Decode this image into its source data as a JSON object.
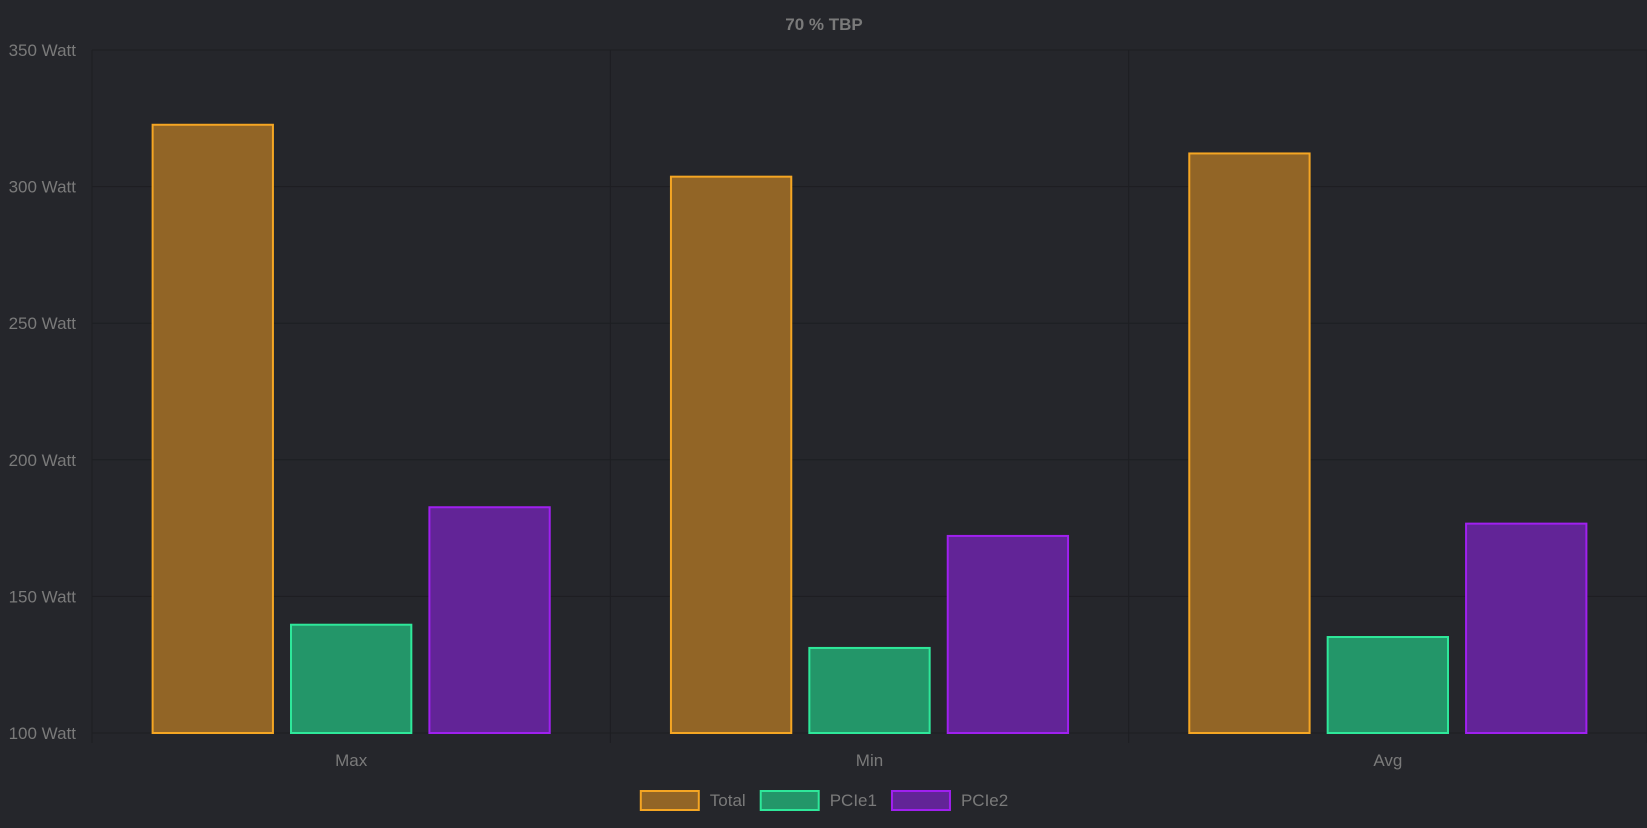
{
  "chart_data": {
    "type": "bar",
    "title": "70 % TBP",
    "categories": [
      "Max",
      "Min",
      "Avg"
    ],
    "series": [
      {
        "name": "Total",
        "values": [
          323,
          304,
          312.5
        ],
        "border": "#f5a623",
        "fill": "#926526"
      },
      {
        "name": "PCIe1",
        "values": [
          140,
          131.5,
          135.5
        ],
        "border": "#2ee89a",
        "fill": "#239669"
      },
      {
        "name": "PCIe2",
        "values": [
          183,
          172.5,
          177
        ],
        "border": "#a020f0",
        "fill": "#622497"
      }
    ],
    "ylim": [
      100,
      350
    ],
    "yticks": [
      "100 Watt",
      "150 Watt",
      "200 Watt",
      "250 Watt",
      "300 Watt",
      "350 Watt"
    ],
    "ytick_values": [
      100,
      150,
      200,
      250,
      300,
      350
    ],
    "xlabel": "",
    "ylabel": "",
    "grid": true,
    "legend_position": "bottom"
  },
  "colors": {
    "background": "#25262b",
    "grid": "#1d1e22",
    "text": "#7a7a7a",
    "title": "#7a7a7a"
  }
}
